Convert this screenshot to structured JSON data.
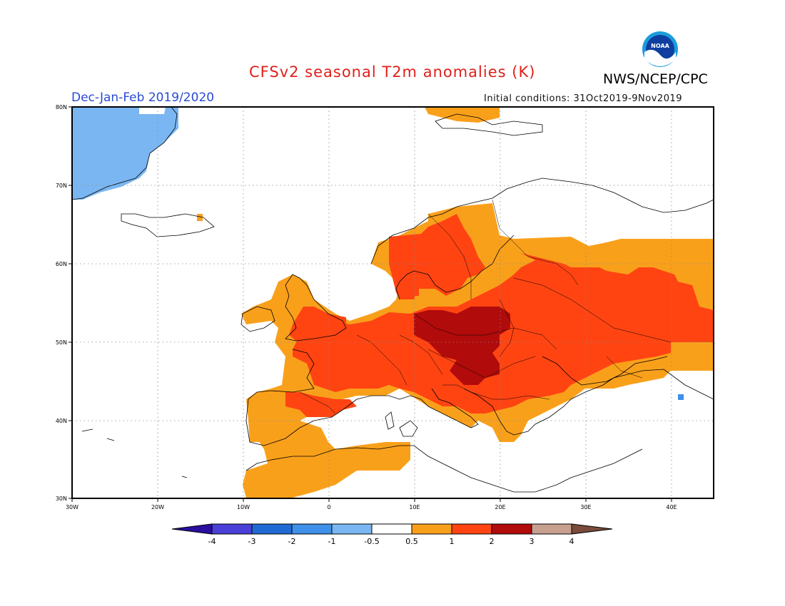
{
  "header": {
    "title": "CFSv2 seasonal T2m anomalies (K)",
    "agency": "NWS/NCEP/CPC",
    "logo_text": "NOAA",
    "season": "Dec-Jan-Feb 2019/2020",
    "initial_conditions": "Initial conditions: 31Oct2019-9Nov2019"
  },
  "map": {
    "lon_range": [
      -30,
      45
    ],
    "lat_range": [
      30,
      80
    ],
    "lat_labels": [
      "80N",
      "70N",
      "60N",
      "50N",
      "40N",
      "30N"
    ],
    "lon_labels": [
      "30W",
      "20W",
      "10W",
      "0",
      "10E",
      "20E",
      "30E",
      "40E"
    ],
    "grid": "dotted"
  },
  "colorbar": {
    "tick_labels": [
      "-4",
      "-3",
      "-2",
      "-1",
      "-0.5",
      "0.5",
      "1",
      "2",
      "3",
      "4"
    ],
    "colors": [
      "#2a0fa0",
      "#4a3fd6",
      "#1f6ad4",
      "#3e90e8",
      "#7ab7f2",
      "#ffffff",
      "#f9a01b",
      "#ff4412",
      "#b10b0b",
      "#c8a090",
      "#7a4b3a"
    ]
  },
  "legend_levels": {
    "orange": "0.5 to 1",
    "red_orange": "1 to 2",
    "dark_red": "2 to 3",
    "light_blue": "-1 to -0.5"
  }
}
